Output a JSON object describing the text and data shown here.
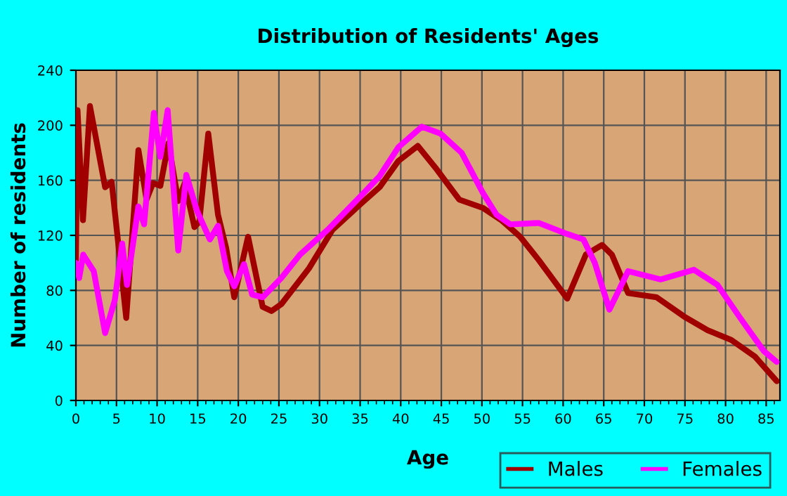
{
  "chart_data": {
    "type": "line",
    "title": "Distribution of Residents' Ages",
    "xlabel": "Age",
    "ylabel": "Number of residents",
    "xlim": [
      0,
      86.7
    ],
    "xticks": [
      0,
      5,
      10,
      15,
      20,
      25,
      30,
      35,
      40,
      45,
      50,
      55,
      60,
      65,
      70,
      75,
      80,
      85
    ],
    "ylim": [
      0,
      240
    ],
    "yticks": [
      0,
      40,
      80,
      120,
      160,
      200,
      240
    ],
    "grid": true,
    "legend": "bottom right",
    "marker": "none",
    "line_style": "solid",
    "series": [
      {
        "name": "Males",
        "color": "#a00000",
        "x": [
          0,
          0.2,
          0.87,
          1.73,
          3.6,
          4.4,
          6.2,
          7.7,
          8.7,
          9.5,
          10.4,
          11.4,
          12.6,
          13.4,
          14.6,
          15.2,
          16.3,
          17.5,
          18.5,
          19.5,
          21.2,
          23,
          24.1,
          25.3,
          28.7,
          31.6,
          35.1,
          37.4,
          39.7,
          42.1,
          44.3,
          47.2,
          50.1,
          52.4,
          54.7,
          57,
          60.5,
          62.8,
          64.8,
          66,
          68,
          71.5,
          74.9,
          77.8,
          80.7,
          83.6,
          86.3
        ],
        "values": [
          102,
          211,
          131,
          214,
          155,
          159,
          60,
          182,
          146,
          158,
          156,
          187,
          145,
          158,
          126,
          130,
          194,
          135,
          111,
          75,
          119,
          68,
          65,
          70,
          96,
          124,
          143,
          155,
          174,
          185,
          169,
          146,
          140,
          131,
          119,
          102,
          74,
          106,
          113,
          106,
          78,
          75,
          61,
          51,
          44,
          32,
          14
        ]
      },
      {
        "name": "Females",
        "color": "#ff00ff",
        "x": [
          0,
          0.4,
          0.9,
          2.2,
          3.6,
          4.8,
          5.7,
          6.3,
          7.7,
          8.4,
          9.6,
          10.4,
          11.3,
          12.6,
          13.6,
          14.9,
          16.5,
          17.5,
          18.6,
          19.5,
          20.7,
          21.7,
          23,
          25.3,
          27.6,
          31,
          34.5,
          37.4,
          39.7,
          42.6,
          44.9,
          47.5,
          50.1,
          51.8,
          53.5,
          57,
          60.5,
          62.5,
          63.9,
          65.7,
          68,
          72,
          76.1,
          79,
          81.8,
          84.7,
          86.3
        ],
        "values": [
          100,
          89,
          106,
          94,
          49,
          73,
          114,
          84,
          141,
          128,
          209,
          177,
          211,
          109,
          164,
          138,
          117,
          127,
          94,
          83,
          99,
          77,
          75,
          89,
          106,
          124,
          145,
          163,
          184,
          199,
          194,
          180,
          151,
          135,
          128,
          129,
          121,
          117,
          100,
          66,
          94,
          88,
          95,
          84,
          60,
          36,
          28
        ]
      }
    ]
  }
}
